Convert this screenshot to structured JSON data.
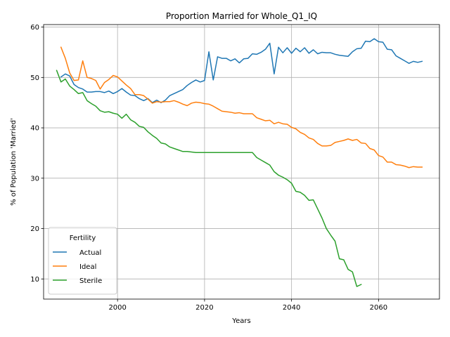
{
  "chart_data": {
    "type": "line",
    "title": "Proportion Married for Whole_Q1_IQ",
    "xlabel": "Years",
    "ylabel": "% of Population 'Married'",
    "xlim": [
      1983,
      2074
    ],
    "ylim": [
      6,
      60.5
    ],
    "xticks": [
      2000,
      2020,
      2040,
      2060
    ],
    "yticks": [
      10,
      20,
      30,
      40,
      50,
      60
    ],
    "grid": true,
    "legend": {
      "title": "Fertility",
      "placement": "lower-left"
    },
    "series": [
      {
        "name": "Actual",
        "color": "#1f77b4",
        "x": [
          1987,
          1988,
          1989,
          1990,
          1991,
          1992,
          1993,
          1994,
          1995,
          1996,
          1997,
          1998,
          1999,
          2000,
          2001,
          2002,
          2003,
          2004,
          2005,
          2006,
          2007,
          2008,
          2009,
          2010,
          2011,
          2012,
          2013,
          2014,
          2015,
          2016,
          2017,
          2018,
          2019,
          2020,
          2021,
          2022,
          2023,
          2024,
          2025,
          2026,
          2027,
          2028,
          2029,
          2030,
          2031,
          2032,
          2033,
          2034,
          2035,
          2036,
          2037,
          2038,
          2039,
          2040,
          2041,
          2042,
          2043,
          2044,
          2045,
          2046,
          2047,
          2048,
          2049,
          2050,
          2051,
          2052,
          2053,
          2054,
          2055,
          2056,
          2057,
          2058,
          2059,
          2060,
          2061,
          2062,
          2063,
          2064,
          2065,
          2066,
          2067,
          2068,
          2069,
          2070
        ],
        "y": [
          50.1,
          50.7,
          50.3,
          48.6,
          48.0,
          47.7,
          47.1,
          47.1,
          47.2,
          47.2,
          47.0,
          47.3,
          46.8,
          47.2,
          47.8,
          47.1,
          46.5,
          46.4,
          45.8,
          45.4,
          45.8,
          45.0,
          45.5,
          45.0,
          45.5,
          46.4,
          46.8,
          47.2,
          47.6,
          48.4,
          49.0,
          49.5,
          49.1,
          49.4,
          55.1,
          49.5,
          54.1,
          53.8,
          53.8,
          53.3,
          53.7,
          52.9,
          53.7,
          53.8,
          54.7,
          54.6,
          55.0,
          55.6,
          56.8,
          50.7,
          56.0,
          54.9,
          55.9,
          54.8,
          55.8,
          55.1,
          55.9,
          54.8,
          55.5,
          54.7,
          55.0,
          54.9,
          54.9,
          54.6,
          54.4,
          54.3,
          54.2,
          55.1,
          55.7,
          55.8,
          57.2,
          57.1,
          57.7,
          57.1,
          57.0,
          55.6,
          55.5,
          54.3,
          53.8,
          53.3,
          52.8,
          53.2,
          53.0,
          53.2
        ]
      },
      {
        "name": "Ideal",
        "color": "#ff7f0e",
        "x": [
          1987,
          1988,
          1989,
          1990,
          1991,
          1992,
          1993,
          1994,
          1995,
          1996,
          1997,
          1998,
          1999,
          2000,
          2001,
          2002,
          2003,
          2004,
          2005,
          2006,
          2007,
          2008,
          2009,
          2010,
          2011,
          2012,
          2013,
          2014,
          2015,
          2016,
          2017,
          2018,
          2019,
          2020,
          2021,
          2022,
          2023,
          2024,
          2025,
          2026,
          2027,
          2028,
          2029,
          2030,
          2031,
          2032,
          2033,
          2034,
          2035,
          2036,
          2037,
          2038,
          2039,
          2040,
          2041,
          2042,
          2043,
          2044,
          2045,
          2046,
          2047,
          2048,
          2049,
          2050,
          2051,
          2052,
          2053,
          2054,
          2055,
          2056,
          2057,
          2058,
          2059,
          2060,
          2061,
          2062,
          2063,
          2064,
          2065,
          2066,
          2067,
          2068,
          2069,
          2070
        ],
        "y": [
          56.0,
          53.8,
          50.9,
          49.4,
          49.5,
          53.3,
          50.0,
          49.8,
          49.4,
          47.7,
          49.0,
          49.6,
          50.4,
          50.1,
          49.3,
          48.5,
          47.8,
          46.6,
          46.6,
          46.4,
          45.7,
          44.9,
          45.2,
          45.1,
          45.2,
          45.2,
          45.4,
          45.1,
          44.7,
          44.4,
          44.9,
          45.1,
          45.0,
          44.8,
          44.7,
          44.3,
          43.8,
          43.3,
          43.2,
          43.1,
          42.9,
          43.0,
          42.8,
          42.8,
          42.8,
          42.0,
          41.7,
          41.4,
          41.5,
          40.8,
          41.1,
          40.8,
          40.7,
          40.1,
          39.8,
          39.1,
          38.7,
          38.0,
          37.7,
          36.9,
          36.4,
          36.4,
          36.5,
          37.1,
          37.3,
          37.5,
          37.8,
          37.5,
          37.7,
          37.0,
          36.9,
          35.9,
          35.6,
          34.5,
          34.2,
          33.2,
          33.2,
          32.7,
          32.6,
          32.4,
          32.1,
          32.3,
          32.2,
          32.2
        ]
      },
      {
        "name": "Sterile",
        "color": "#2ca02c",
        "x": [
          1986,
          1987,
          1988,
          1989,
          1990,
          1991,
          1992,
          1993,
          1994,
          1995,
          1996,
          1997,
          1998,
          1999,
          2000,
          2001,
          2002,
          2003,
          2004,
          2005,
          2006,
          2007,
          2008,
          2009,
          2010,
          2011,
          2012,
          2013,
          2014,
          2015,
          2016,
          2017,
          2018,
          2019,
          2020,
          2021,
          2022,
          2023,
          2024,
          2025,
          2026,
          2027,
          2028,
          2029,
          2030,
          2031,
          2032,
          2033,
          2034,
          2035,
          2036,
          2037,
          2038,
          2039,
          2040,
          2041,
          2042,
          2043,
          2044,
          2045,
          2046,
          2047,
          2048,
          2049,
          2050,
          2051,
          2052,
          2053,
          2054,
          2055,
          2056
        ],
        "y": [
          51.4,
          49.1,
          49.7,
          48.3,
          47.6,
          46.8,
          47.0,
          45.4,
          44.8,
          44.3,
          43.4,
          43.1,
          43.2,
          42.9,
          42.7,
          41.9,
          42.7,
          41.6,
          41.1,
          40.3,
          40.1,
          39.2,
          38.5,
          37.9,
          37.0,
          36.8,
          36.2,
          35.9,
          35.6,
          35.3,
          35.3,
          35.2,
          35.1,
          35.1,
          35.1,
          35.1,
          35.1,
          35.1,
          35.1,
          35.1,
          35.1,
          35.1,
          35.1,
          35.1,
          35.1,
          35.1,
          34.1,
          33.6,
          33.1,
          32.6,
          31.3,
          30.6,
          30.2,
          29.7,
          29.0,
          27.4,
          27.2,
          26.6,
          25.6,
          25.7,
          23.9,
          22.1,
          20.0,
          18.7,
          17.5,
          14.0,
          13.8,
          11.9,
          11.4,
          8.5,
          8.9
        ]
      }
    ]
  }
}
